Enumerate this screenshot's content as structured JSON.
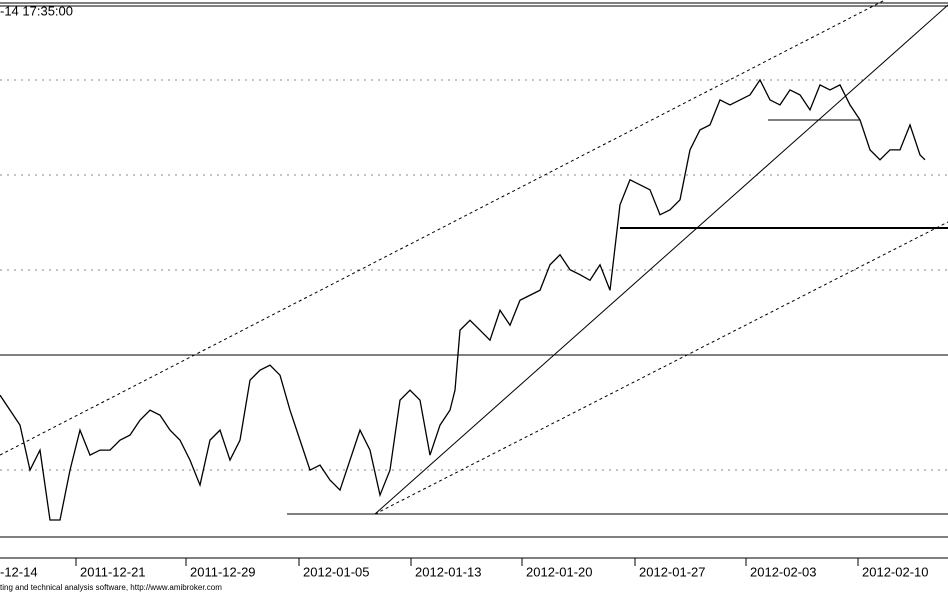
{
  "header_text": "-14 17:35:00",
  "footer_text": "ting and technical analysis software, http://www.amibroker.com",
  "chart_data": {
    "type": "line",
    "color": "#000000",
    "xlim": [
      0,
      94.8
    ],
    "ylim": [
      0,
      100
    ],
    "xticks": [
      {
        "value": -0.4,
        "label": "-12-14"
      },
      {
        "value": 7.6,
        "label": "2011-12-21"
      },
      {
        "value": 18.6,
        "label": "2011-12-29"
      },
      {
        "value": 29.9,
        "label": "2012-01-05"
      },
      {
        "value": 41.1,
        "label": "2012-01-13"
      },
      {
        "value": 52.2,
        "label": "2012-01-20"
      },
      {
        "value": 63.5,
        "label": "2012-01-27"
      },
      {
        "value": 74.6,
        "label": "2012-02-03"
      },
      {
        "value": 85.8,
        "label": "2012-02-10"
      }
    ],
    "x": [
      0,
      1,
      2,
      3,
      4,
      5,
      6,
      7,
      8,
      9,
      10,
      11,
      12,
      13,
      14,
      15,
      16,
      17,
      18,
      19,
      20,
      21,
      22,
      23,
      24,
      25,
      26,
      27,
      28,
      29,
      30,
      31,
      32,
      33,
      34,
      35,
      36,
      37,
      38,
      39,
      40,
      41,
      42,
      43,
      44,
      45,
      45.5,
      46,
      47,
      48,
      49,
      50,
      51,
      52,
      53,
      54,
      55,
      56,
      57,
      58,
      59,
      60,
      61,
      62,
      63,
      64,
      65,
      66,
      67,
      68,
      69,
      70,
      71,
      72,
      73,
      74,
      75,
      76,
      77,
      78,
      79,
      80,
      81,
      82,
      83,
      84,
      85,
      86,
      87,
      88,
      89,
      90,
      91,
      92,
      92.5
    ],
    "values": [
      28.8,
      26.1,
      23.4,
      15.3,
      18.9,
      6.3,
      6.3,
      15.3,
      22.5,
      18.0,
      18.9,
      18.9,
      20.7,
      21.6,
      24.3,
      26.1,
      25.2,
      22.5,
      20.7,
      17.1,
      12.6,
      20.7,
      22.5,
      17.1,
      20.7,
      31.5,
      33.3,
      34.2,
      32.4,
      26.1,
      20.7,
      15.3,
      16.2,
      13.5,
      11.7,
      17.1,
      22.5,
      18.9,
      10.8,
      15.3,
      27.9,
      29.7,
      27.9,
      18.0,
      23.4,
      26.1,
      29.7,
      40.5,
      42.3,
      40.5,
      38.7,
      44.1,
      41.4,
      45.9,
      46.8,
      47.7,
      52.3,
      54.1,
      51.4,
      50.5,
      49.5,
      52.3,
      47.7,
      63.1,
      67.6,
      66.7,
      65.8,
      61.3,
      62.2,
      64.0,
      73.0,
      76.6,
      77.5,
      82.0,
      81.1,
      82.0,
      82.9,
      85.6,
      82.0,
      81.1,
      83.8,
      82.9,
      80.2,
      84.7,
      83.8,
      84.7,
      81.1,
      78.4,
      73.0,
      71.2,
      73.0,
      73.0,
      77.5,
      72.1,
      71.2
    ]
  }
}
